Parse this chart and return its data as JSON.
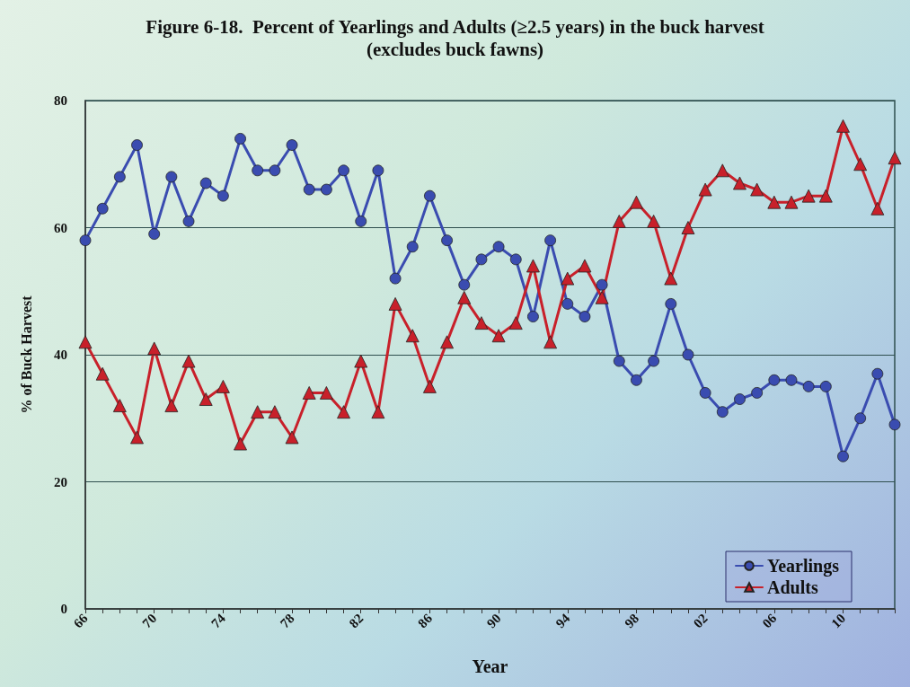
{
  "chart_data": {
    "type": "line",
    "title": "Figure 6-18.  Percent of Yearlings and Adults (≥2.5 years) in the buck harvest",
    "subtitle": "(excludes buck fawns)",
    "xlabel": "Year",
    "ylabel": "% of Buck Harvest",
    "categories": [
      "66",
      null,
      null,
      null,
      "70",
      null,
      null,
      null,
      "74",
      null,
      null,
      null,
      "78",
      null,
      null,
      null,
      "82",
      null,
      null,
      null,
      "86",
      null,
      null,
      null,
      "90",
      null,
      null,
      null,
      "94",
      null,
      null,
      null,
      "98",
      null,
      null,
      null,
      "02",
      null,
      null,
      null,
      "06",
      null,
      null,
      null,
      "10",
      null,
      null,
      null
    ],
    "series": [
      {
        "name": "Yearlings",
        "color": "#3a4cb0",
        "marker": "circle",
        "values": [
          58,
          63,
          68,
          73,
          59,
          68,
          61,
          67,
          65,
          74,
          69,
          69,
          73,
          66,
          66,
          69,
          61,
          69,
          52,
          57,
          65,
          58,
          51,
          55,
          57,
          55,
          46,
          58,
          48,
          46,
          51,
          39,
          36,
          39,
          48,
          40,
          34,
          31,
          33,
          34,
          36,
          36,
          35,
          35,
          24,
          30,
          37,
          29
        ]
      },
      {
        "name": "Adults",
        "color": "#c8202a",
        "marker": "triangle",
        "values": [
          42,
          37,
          32,
          27,
          41,
          32,
          39,
          33,
          35,
          26,
          31,
          31,
          27,
          34,
          34,
          31,
          39,
          31,
          48,
          43,
          35,
          42,
          49,
          45,
          43,
          45,
          54,
          42,
          52,
          54,
          49,
          61,
          64,
          61,
          52,
          60,
          66,
          69,
          67,
          66,
          64,
          64,
          65,
          65,
          76,
          70,
          63,
          71
        ]
      }
    ],
    "ylim": [
      0,
      80
    ],
    "yticks": [
      0,
      20,
      40,
      60,
      80
    ],
    "grid": "y",
    "legend": "bottom right",
    "line_style": "solid"
  }
}
